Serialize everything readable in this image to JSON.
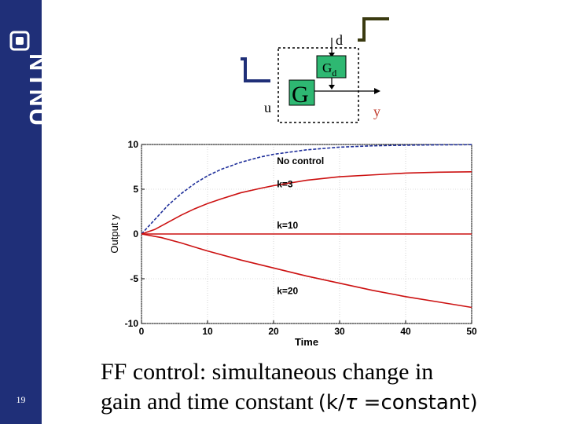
{
  "logo": {
    "text": "NTNU"
  },
  "slide_number": "19",
  "diagram": {
    "d_label": "d",
    "u_label": "u",
    "y_label": "y",
    "g_label": "G",
    "gd_label": "G",
    "gd_subscript": "d",
    "colors": {
      "block_fill": "#2eb872",
      "signal_input": "#1f2f78",
      "signal_disturbance": "#3a3a10",
      "output_text": "#c0392b"
    }
  },
  "caption": {
    "line1": "FF control: simultaneous change in",
    "line2": "gain and time constant",
    "formula_open": "(k/",
    "formula_tau": "τ",
    "formula_rest": " =constant)"
  },
  "chart_data": {
    "type": "line",
    "xlabel": "Time",
    "ylabel": "Output y",
    "xlim": [
      0,
      50
    ],
    "ylim": [
      -10,
      10
    ],
    "xticks": [
      0,
      10,
      20,
      30,
      40,
      50
    ],
    "yticks": [
      -10,
      -5,
      0,
      5,
      10
    ],
    "grid": true,
    "series": [
      {
        "name": "No control",
        "color": "#1f2f9a",
        "dashed": true,
        "x": [
          0,
          2,
          4,
          6,
          8,
          10,
          12,
          15,
          18,
          20,
          25,
          30,
          35,
          40,
          45,
          50
        ],
        "y": [
          0,
          1.6,
          3.2,
          4.5,
          5.6,
          6.5,
          7.2,
          8.0,
          8.6,
          8.9,
          9.4,
          9.7,
          9.85,
          9.92,
          9.96,
          9.98
        ]
      },
      {
        "name": "k=3",
        "color": "#cc1111",
        "dashed": false,
        "x": [
          0,
          2,
          4,
          6,
          8,
          10,
          12,
          15,
          18,
          20,
          25,
          30,
          35,
          40,
          45,
          50
        ],
        "y": [
          0,
          0.5,
          1.3,
          2.1,
          2.8,
          3.4,
          3.9,
          4.6,
          5.1,
          5.4,
          6.0,
          6.4,
          6.6,
          6.8,
          6.9,
          6.95
        ]
      },
      {
        "name": "k=10",
        "color": "#cc1111",
        "dashed": false,
        "x": [
          0,
          50
        ],
        "y": [
          0,
          0
        ]
      },
      {
        "name": "k=20",
        "color": "#cc1111",
        "dashed": false,
        "x": [
          0,
          3,
          6,
          10,
          15,
          20,
          25,
          30,
          35,
          40,
          45,
          50
        ],
        "y": [
          0,
          -0.4,
          -1.0,
          -1.9,
          -2.9,
          -3.8,
          -4.7,
          -5.5,
          -6.3,
          -7.0,
          -7.6,
          -8.2
        ]
      }
    ],
    "annotations": [
      {
        "text": "No control",
        "x": 20.5,
        "y": 7.8
      },
      {
        "text": "k=3",
        "x": 20.5,
        "y": 5.2
      },
      {
        "text": "k=10",
        "x": 20.5,
        "y": 0.6
      },
      {
        "text": "k=20",
        "x": 20.5,
        "y": -6.7
      }
    ]
  }
}
